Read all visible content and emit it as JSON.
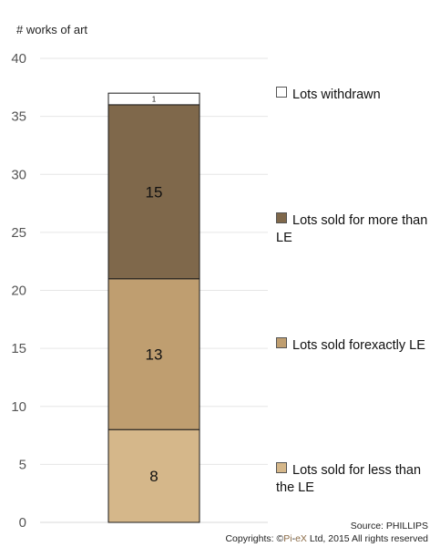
{
  "chart_data": {
    "type": "bar",
    "stacked": true,
    "ylabel": "# works of art",
    "ylim": [
      0,
      40
    ],
    "yticks": [
      0,
      5,
      10,
      15,
      20,
      25,
      30,
      35,
      40
    ],
    "grid": true,
    "legend_placement": "right",
    "categories": [
      ""
    ],
    "series": [
      {
        "name": "Lots sold for less than the LE",
        "values": [
          8
        ],
        "color": "#d5b78a",
        "label": "8"
      },
      {
        "name": "Lots sold forexactly LE",
        "values": [
          13
        ],
        "color": "#bf9e70",
        "label": "13"
      },
      {
        "name": "Lots sold for more than LE",
        "values": [
          15
        ],
        "color": "#7f684b",
        "label": "15"
      },
      {
        "name": "Lots withdrawn",
        "values": [
          1
        ],
        "color": "#ffffff",
        "label": "1"
      }
    ]
  },
  "legend": [
    {
      "text": "Lots withdrawn",
      "color": "#ffffff"
    },
    {
      "text": "Lots sold for more than LE",
      "color": "#7f684b"
    },
    {
      "text": "Lots sold forexactly LE",
      "color": "#bf9e70"
    },
    {
      "text": "Lots sold for less than the LE",
      "color": "#d5b78a"
    }
  ],
  "footer": {
    "source": "Source: PHILLIPS",
    "copyright_prefix": "Copyrights: ",
    "copyright_symbol": "©",
    "brand_pi": "Pi",
    "brand_dash": "-",
    "brand_ex": "eX",
    "copyright_suffix": " Ltd, 2015 All rights reserved"
  }
}
